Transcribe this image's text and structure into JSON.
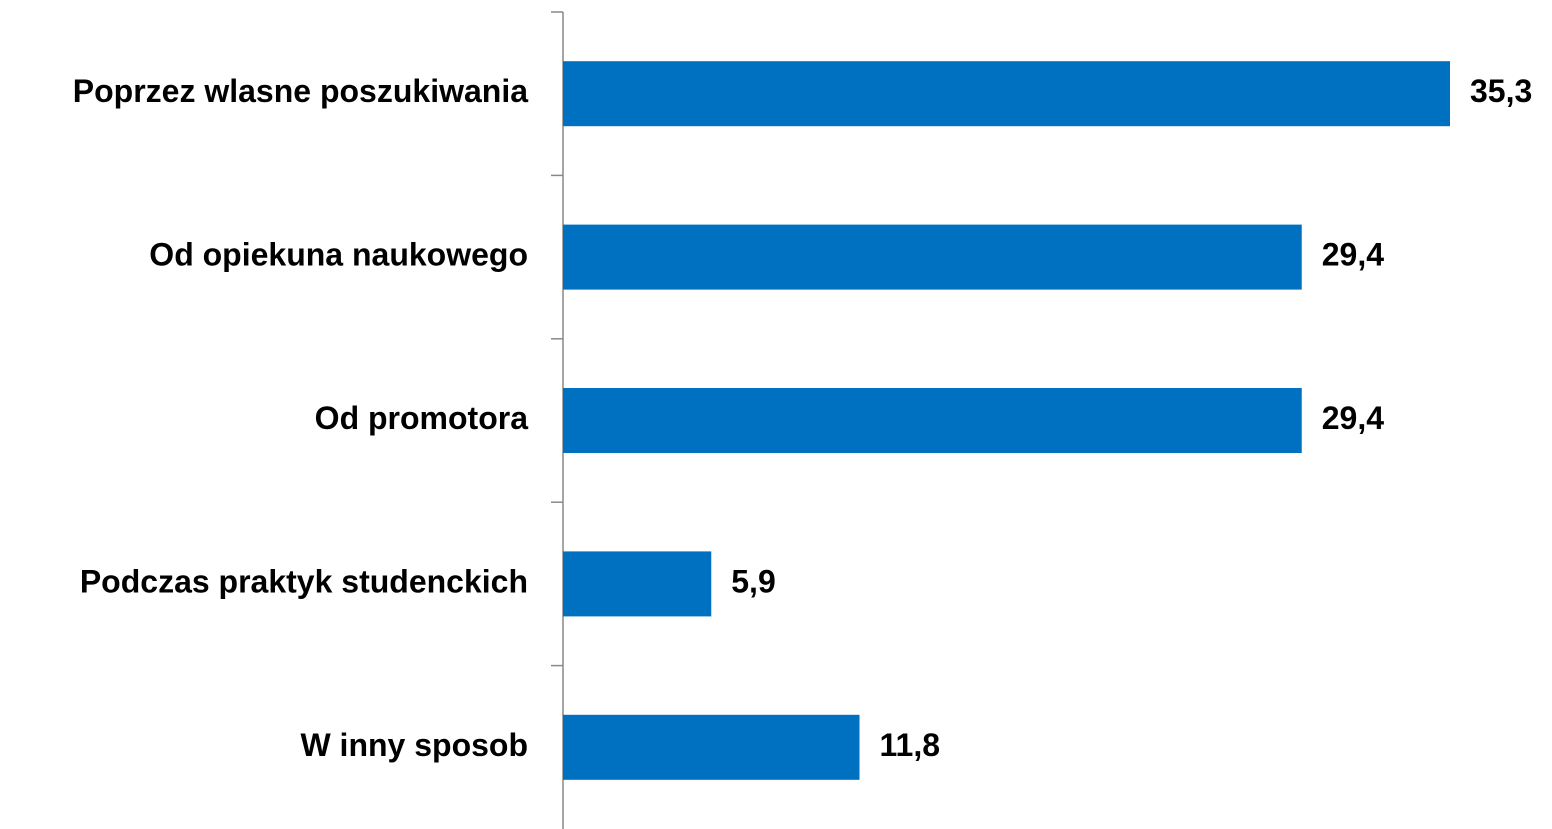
{
  "chart_data": {
    "type": "bar",
    "orientation": "horizontal",
    "categories": [
      "Poprzez wlasne poszukiwania",
      "Od opiekuna naukowego",
      "Od promotora",
      "Podczas praktyk studenckich",
      "W inny sposob"
    ],
    "values": [
      35.3,
      29.4,
      29.4,
      5.9,
      11.8
    ],
    "value_labels": [
      "35,3",
      "29,4",
      "29,4",
      "5,9",
      "11,8"
    ],
    "color": "#0070c0"
  }
}
